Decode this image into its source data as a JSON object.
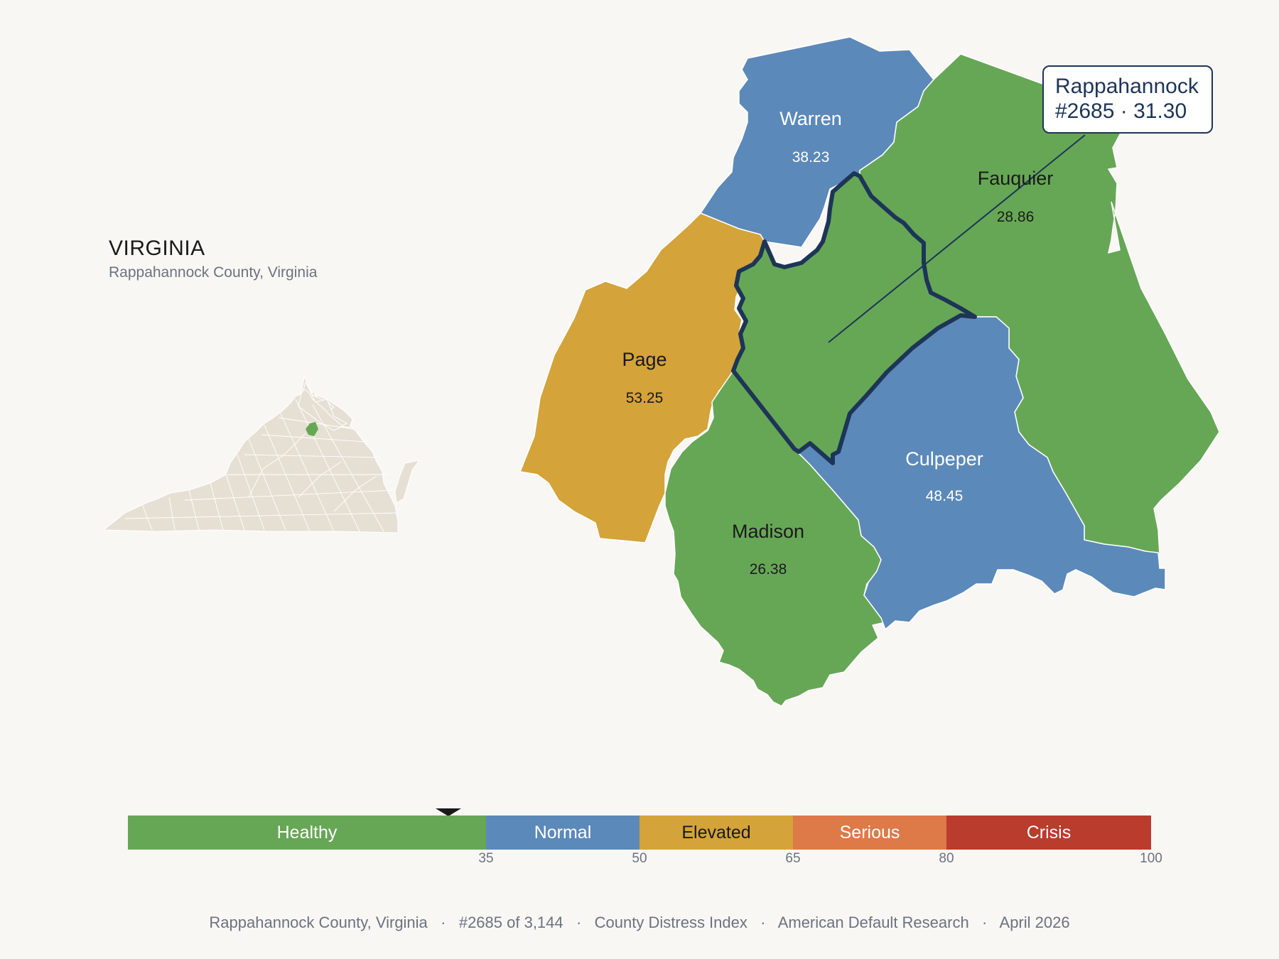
{
  "state": {
    "title": "VIRGINIA",
    "subtitle": "Rappahannock County, Virginia"
  },
  "callout": {
    "line1": "Rappahannock",
    "line2": "#2685 · 31.30"
  },
  "counties": [
    {
      "name": "Warren",
      "value": "38.23",
      "category": "Normal"
    },
    {
      "name": "Fauquier",
      "value": "28.86",
      "category": "Healthy"
    },
    {
      "name": "Page",
      "value": "53.25",
      "category": "Elevated"
    },
    {
      "name": "Culpeper",
      "value": "48.45",
      "category": "Normal"
    },
    {
      "name": "Madison",
      "value": "26.38",
      "category": "Healthy"
    },
    {
      "name": "Rappahannock",
      "value": "31.30",
      "category": "Healthy",
      "highlighted": true
    }
  ],
  "legend": {
    "segments": [
      {
        "label": "Healthy",
        "from": 0,
        "to": 35,
        "color": "#66a756"
      },
      {
        "label": "Normal",
        "from": 35,
        "to": 50,
        "color": "#5b89ba"
      },
      {
        "label": "Elevated",
        "from": 50,
        "to": 65,
        "color": "#d4a33a"
      },
      {
        "label": "Serious",
        "from": 65,
        "to": 80,
        "color": "#de7948"
      },
      {
        "label": "Crisis",
        "from": 80,
        "to": 100,
        "color": "#b93c2c"
      }
    ],
    "ticks": [
      "35",
      "50",
      "65",
      "80",
      "100"
    ],
    "marker_value": 31.3
  },
  "colors": {
    "healthy": "#66a756",
    "normal": "#5b89ba",
    "elevated": "#d4a33a",
    "outline": "#1d3557",
    "inset_state": "#e6e0d4",
    "background": "#f9f7f4"
  },
  "footer": {
    "parts": [
      "Rappahannock County, Virginia",
      "#2685 of 3,144",
      "County Distress Index",
      "American Default Research",
      "April 2026"
    ]
  }
}
